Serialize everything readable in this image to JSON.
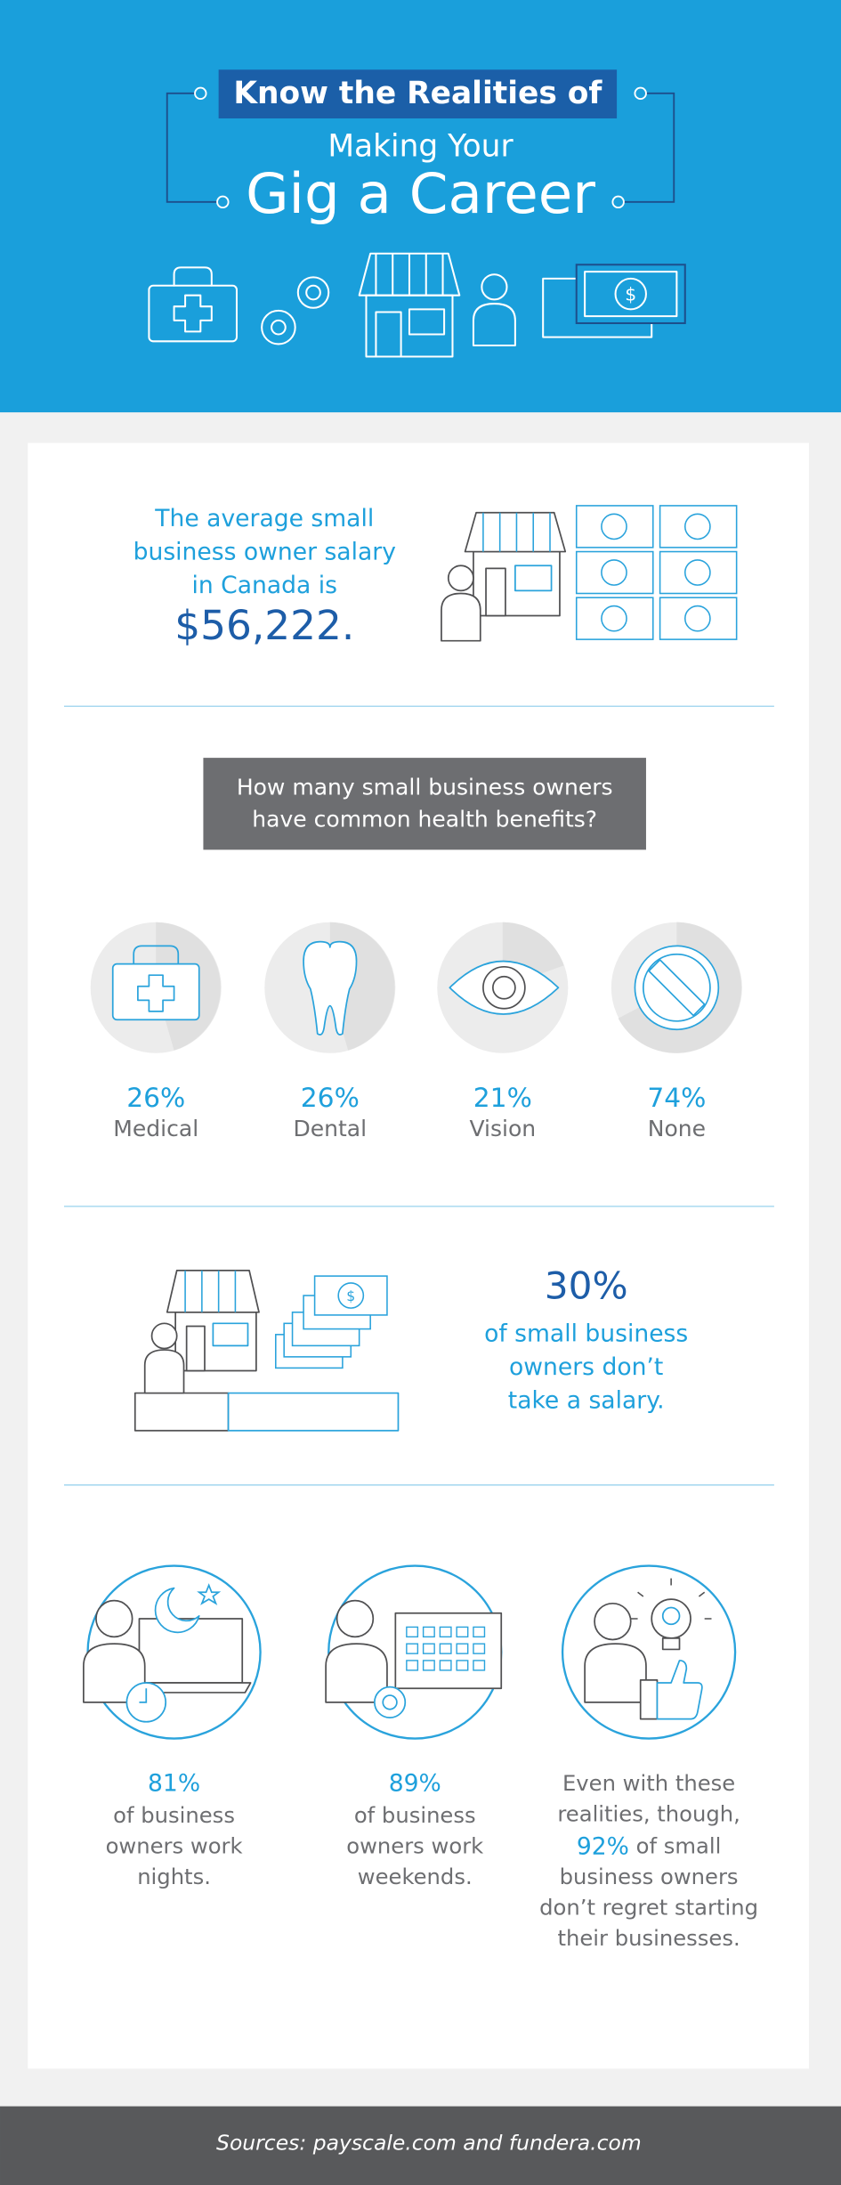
{
  "header": {
    "title_box": "Know the Realities of",
    "subtitle": "Making Your",
    "title": "Gig a Career"
  },
  "salary": {
    "lines": [
      "The average small",
      "business owner salary",
      "in Canada is"
    ],
    "amount": "$56,222."
  },
  "benefits": {
    "question": [
      "How many small business owners",
      "have common health benefits?"
    ],
    "items": [
      {
        "percent": "26%",
        "label": "Medical"
      },
      {
        "percent": "26%",
        "label": "Dental"
      },
      {
        "percent": "21%",
        "label": "Vision"
      },
      {
        "percent": "74%",
        "label": "None"
      }
    ]
  },
  "no_salary": {
    "percent": "30%",
    "lines": [
      "of small business",
      "owners don’t",
      "take a salary."
    ]
  },
  "hours": [
    {
      "percent": "81%",
      "lines": [
        "of business",
        "owners work",
        "nights."
      ]
    },
    {
      "percent": "89%",
      "lines": [
        "of business",
        "owners work",
        "weekends."
      ]
    }
  ],
  "regret": {
    "lines_before": [
      "Even with these",
      "realities, though,"
    ],
    "percent": "92%",
    "line_rest": " of small",
    "lines_after": [
      "business owners",
      "don’t regret starting",
      "their businesses."
    ]
  },
  "footer": "Sources: payscale.com and fundera.com"
}
